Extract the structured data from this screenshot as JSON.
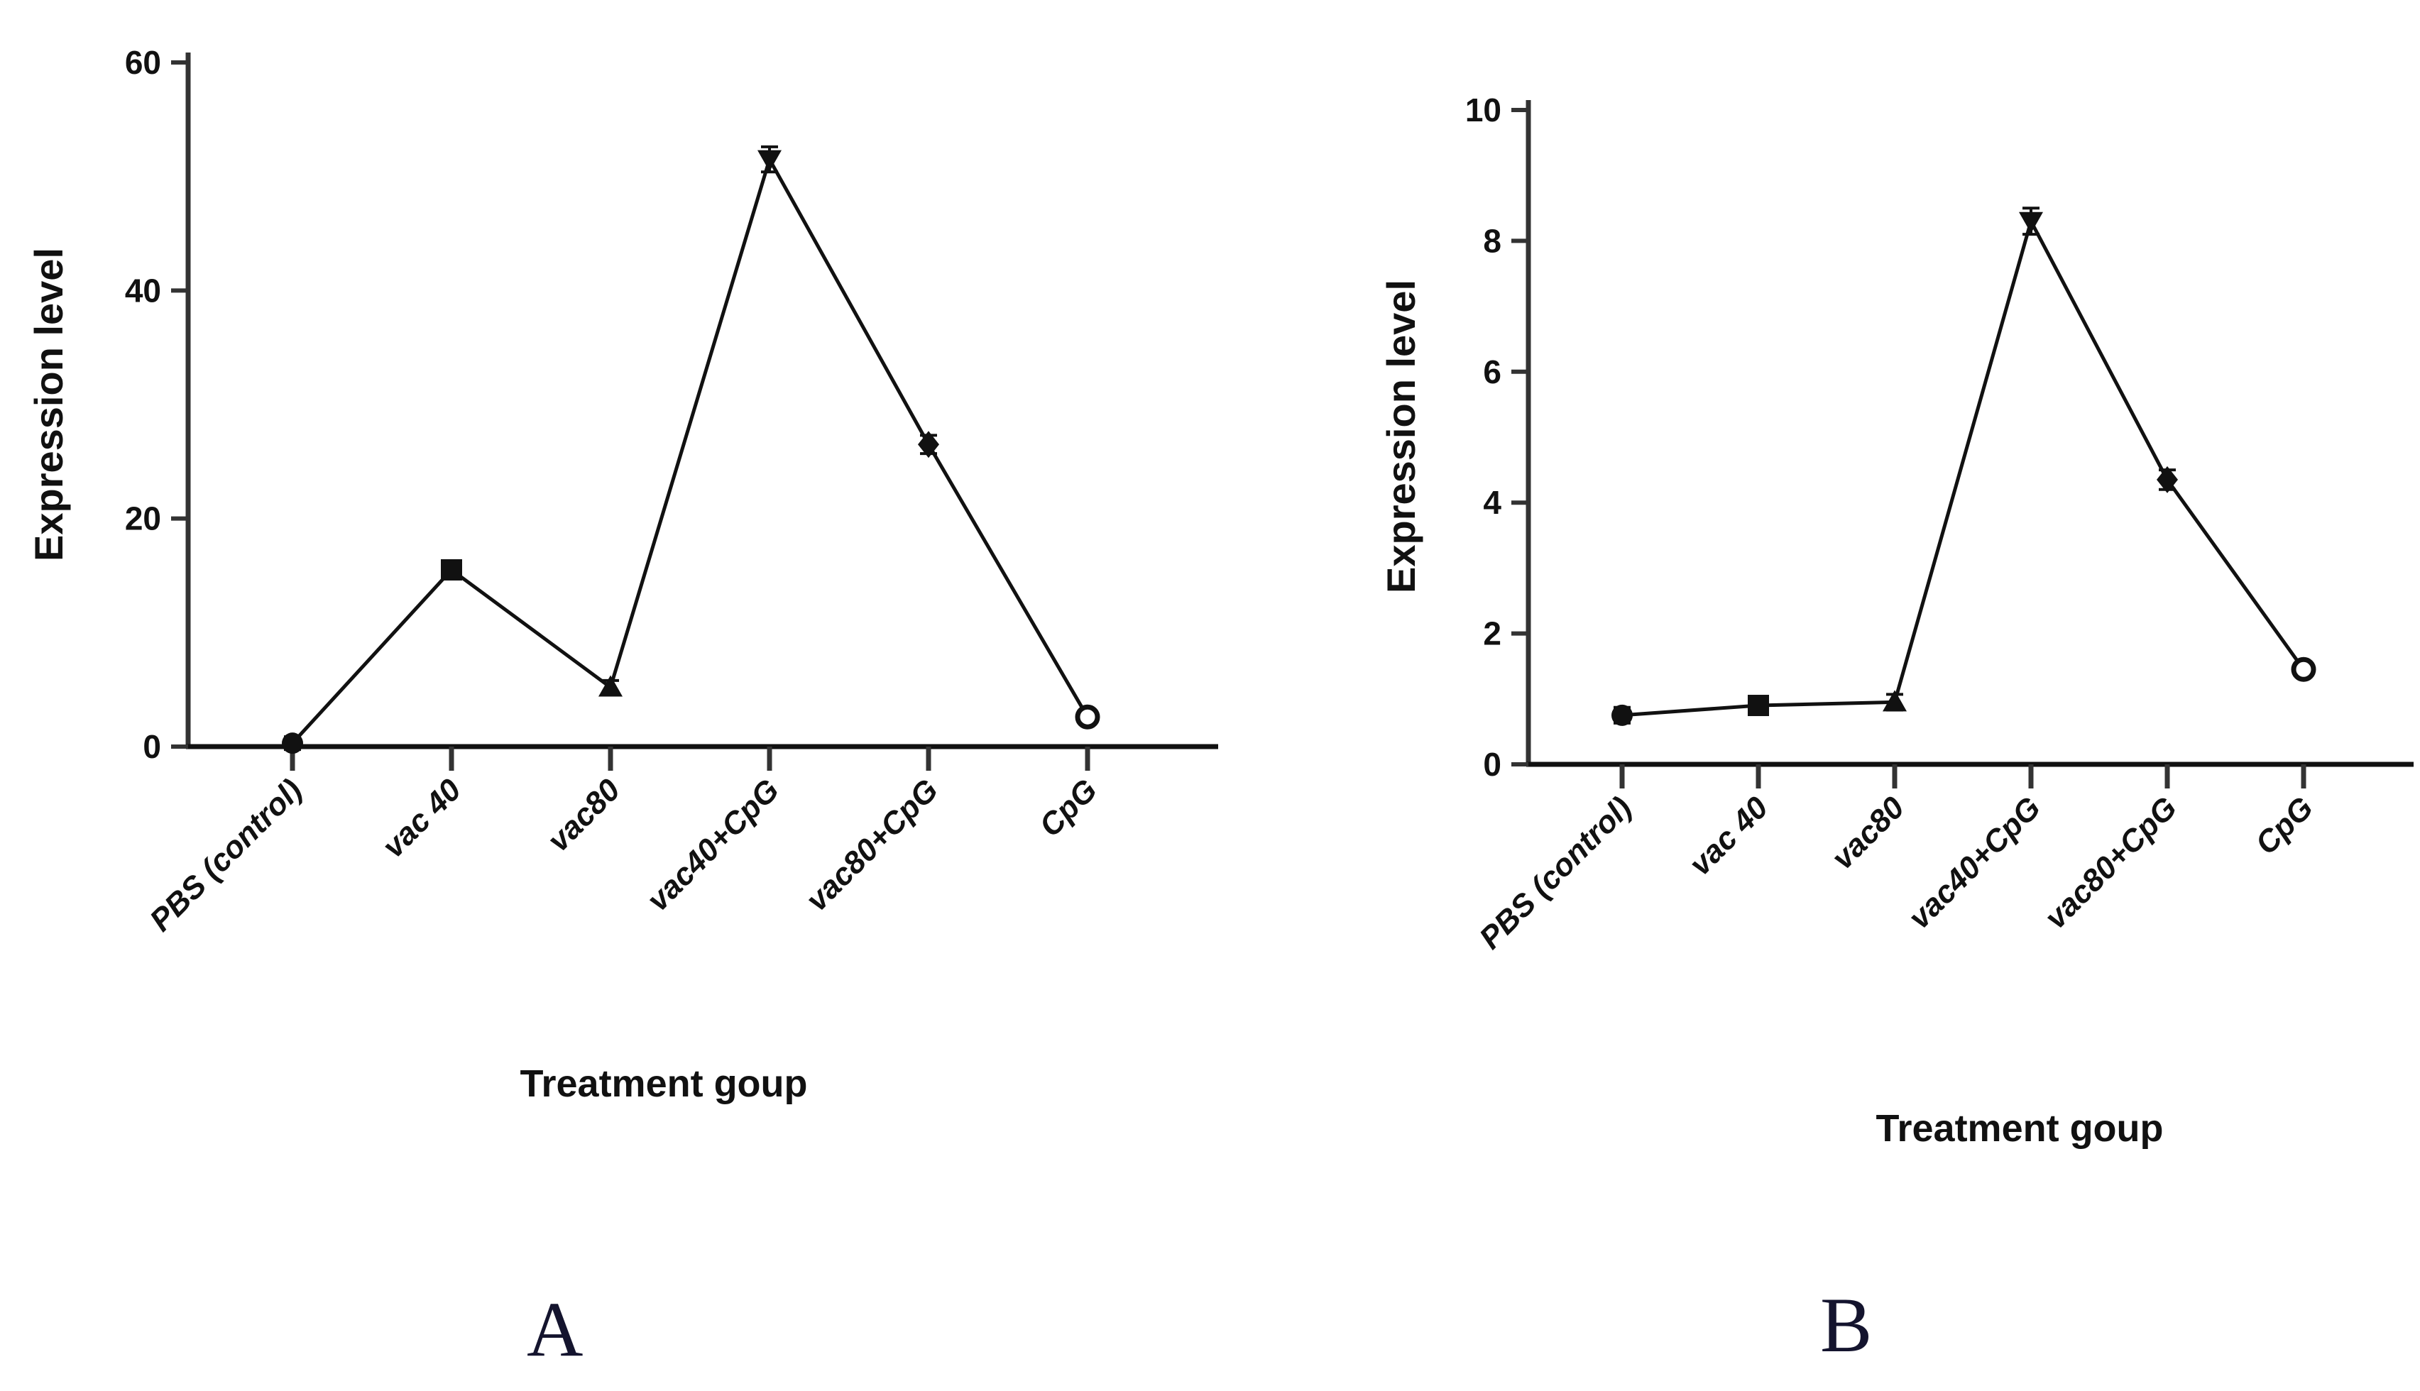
{
  "figure": {
    "background": "#ffffff",
    "line_color": "#111111",
    "axis_color": "#333333",
    "text_color": "#111111",
    "panel_letter_color": "#14142e"
  },
  "chart_data": [
    {
      "type": "line",
      "panel_label": "A",
      "title": "",
      "xlabel": "Treatment goup",
      "ylabel": "Expression level",
      "categories": [
        "PBS (control)",
        "vac 40",
        "vac80",
        "vac40+CpG",
        "vac80+CpG",
        "CpG"
      ],
      "series": [
        {
          "name": "Expression level",
          "values": [
            0.3,
            15.5,
            5.2,
            51.5,
            26.5,
            2.6
          ]
        }
      ],
      "errors": [
        0.4,
        0.7,
        0.6,
        1.1,
        0.8,
        0.5
      ],
      "markers": [
        "filled-circle",
        "filled-square",
        "filled-triangle-up",
        "filled-triangle-down",
        "filled-diamond",
        "open-circle"
      ],
      "ylim": [
        0,
        60
      ],
      "yticks": [
        0,
        20,
        40,
        60
      ],
      "grid": false,
      "legend": "none"
    },
    {
      "type": "line",
      "panel_label": "B",
      "title": "",
      "xlabel": "Treatment goup",
      "ylabel": "Expression level",
      "categories": [
        "PBS (control)",
        "vac 40",
        "vac80",
        "vac40+CpG",
        "vac80+CpG",
        "CpG"
      ],
      "series": [
        {
          "name": "Expression level",
          "values": [
            0.75,
            0.9,
            0.95,
            8.3,
            4.35,
            1.45
          ]
        }
      ],
      "errors": [
        0.12,
        0.1,
        0.12,
        0.2,
        0.15,
        0.1
      ],
      "markers": [
        "filled-circle",
        "filled-square",
        "filled-triangle-up",
        "filled-triangle-down",
        "filled-diamond",
        "open-circle"
      ],
      "ylim": [
        0,
        10
      ],
      "yticks": [
        0,
        2,
        4,
        6,
        8,
        10
      ],
      "grid": false,
      "legend": "none"
    }
  ]
}
